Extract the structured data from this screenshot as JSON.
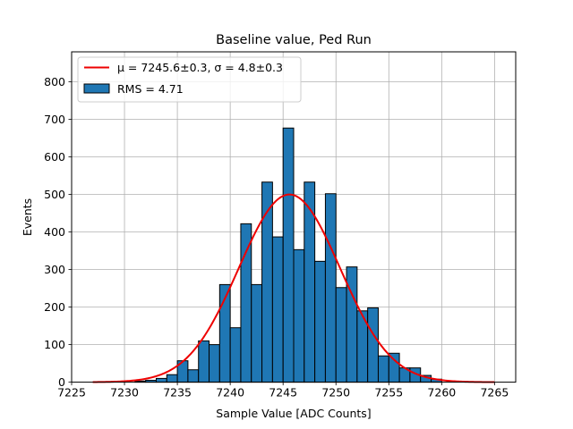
{
  "chart_data": {
    "type": "bar",
    "title": "Baseline value, Ped Run",
    "xlabel": "Sample Value [ADC Counts]",
    "ylabel": "Events",
    "xlim": [
      7225.0,
      7267.0
    ],
    "ylim": [
      0,
      880
    ],
    "xticks": [
      7225,
      7230,
      7235,
      7240,
      7245,
      7250,
      7255,
      7260,
      7265
    ],
    "yticks": [
      0,
      100,
      200,
      300,
      400,
      500,
      600,
      700,
      800
    ],
    "grid": true,
    "legend_location": "upper-left",
    "histogram": {
      "name": "RMS = 4.71",
      "color": "#1f77b4",
      "edge_color": "#000000",
      "bin_edges": [
        7231.0,
        7232.0,
        7233.0,
        7234.0,
        7235.0,
        7236.0,
        7237.0,
        7238.0,
        7239.0,
        7240.0,
        7241.0,
        7242.0,
        7243.0,
        7244.0,
        7245.0,
        7246.0,
        7247.0,
        7248.0,
        7249.0,
        7250.0,
        7251.0,
        7252.0,
        7253.0,
        7254.0,
        7255.0,
        7256.0,
        7257.0,
        7258.0,
        7259.0,
        7260.0
      ],
      "counts": [
        3,
        5,
        10,
        20,
        57,
        33,
        110,
        100,
        260,
        145,
        422,
        260,
        533,
        387,
        677,
        353,
        533,
        322,
        502,
        252,
        307,
        190,
        198,
        70,
        77,
        38,
        38,
        18,
        8
      ]
    },
    "fit": {
      "name": "μ = 7245.6±0.3, σ = 4.8±0.3",
      "color": "#ee0000",
      "mu": 7245.6,
      "sigma": 4.8,
      "amplitude": 500,
      "x_range": [
        7227,
        7265
      ]
    }
  }
}
